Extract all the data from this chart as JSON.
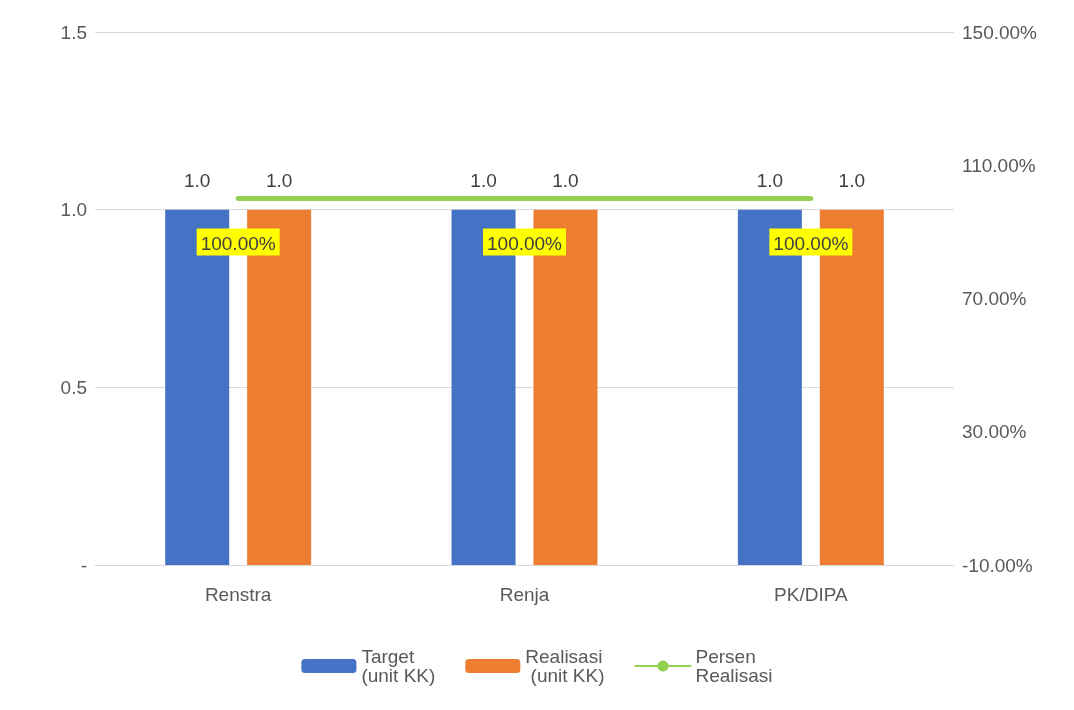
{
  "chart_data": {
    "type": "bar",
    "categories": [
      "Renstra",
      "Renja",
      "PK/DIPA"
    ],
    "series": [
      {
        "name": "Target (unit KK)",
        "color": "#4472c4",
        "values": [
          1,
          1,
          1
        ],
        "value_labels": [
          "1.0",
          "1.0",
          "1.0"
        ]
      },
      {
        "name": "Realisasi (unit KK)",
        "color": "#ed7d31",
        "values": [
          1,
          1,
          1
        ],
        "value_labels": [
          "1.0",
          "1.0",
          "1.0"
        ]
      },
      {
        "name": "Persen Realisasi",
        "type": "line",
        "axis": "y2",
        "color": "#92d050",
        "values": [
          100,
          100,
          100
        ],
        "value_labels": [
          "100.00%",
          "100.00%",
          "100.00%"
        ]
      }
    ],
    "ylim": [
      0,
      1.5
    ],
    "yticks": [
      {
        "value": 0,
        "label": "-"
      },
      {
        "value": 0.5,
        "label": "0.5"
      },
      {
        "value": 1,
        "label": "1.0"
      },
      {
        "value": 1.5,
        "label": "1.5"
      }
    ],
    "y2lim": [
      -10,
      150
    ],
    "y2ticks": [
      {
        "value": -10,
        "label": "-10.00%"
      },
      {
        "value": 30,
        "label": "30.00%"
      },
      {
        "value": 70,
        "label": "70.00%"
      },
      {
        "value": 110,
        "label": "110.00%"
      },
      {
        "value": 150,
        "label": "150.00%"
      }
    ],
    "grid": "y",
    "legend": "bottom",
    "marker": "none",
    "line_style": "solid"
  }
}
